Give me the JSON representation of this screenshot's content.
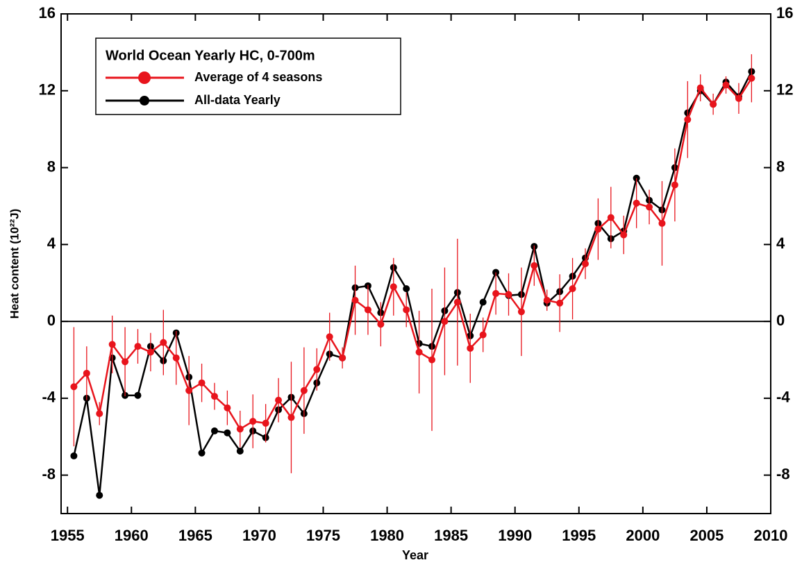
{
  "chart_data": {
    "type": "line",
    "title": "World Ocean Yearly  HC, 0-700m",
    "x_label": "Year",
    "y_label": "Heat content (10²²J)",
    "x": [
      1955.5,
      1956.5,
      1957.5,
      1958.5,
      1959.5,
      1960.5,
      1961.5,
      1962.5,
      1963.5,
      1964.5,
      1965.5,
      1966.5,
      1967.5,
      1968.5,
      1969.5,
      1970.5,
      1971.5,
      1972.5,
      1973.5,
      1974.5,
      1975.5,
      1976.5,
      1977.5,
      1978.5,
      1979.5,
      1980.5,
      1981.5,
      1982.5,
      1983.5,
      1984.5,
      1985.5,
      1986.5,
      1987.5,
      1988.5,
      1989.5,
      1990.5,
      1991.5,
      1992.5,
      1993.5,
      1994.5,
      1995.5,
      1996.5,
      1997.5,
      1998.5,
      1999.5,
      2000.5,
      2001.5,
      2002.5,
      2003.5,
      2004.5,
      2005.5,
      2006.5,
      2007.5,
      2008.5
    ],
    "series": [
      {
        "name": "Average of 4 seasons",
        "color": "#e8141c",
        "values": [
          -3.4,
          -2.7,
          -4.8,
          -1.2,
          -2.1,
          -1.3,
          -1.6,
          -1.1,
          -1.9,
          -3.6,
          -3.2,
          -3.9,
          -4.5,
          -5.6,
          -5.2,
          -5.3,
          -4.1,
          -5.0,
          -3.6,
          -2.5,
          -0.8,
          -1.9,
          1.1,
          0.6,
          -0.15,
          1.8,
          0.6,
          -1.6,
          -2.0,
          0.0,
          1.0,
          -1.4,
          -0.7,
          1.45,
          1.4,
          0.5,
          2.9,
          1.1,
          0.95,
          1.7,
          3.0,
          4.8,
          5.4,
          4.5,
          6.15,
          5.95,
          5.1,
          7.1,
          10.5,
          12.15,
          11.3,
          12.3,
          11.6,
          12.65
        ],
        "errors": [
          3.1,
          1.4,
          0.6,
          1.5,
          1.8,
          0.9,
          1.0,
          1.7,
          1.4,
          1.8,
          1.0,
          0.7,
          0.9,
          0.95,
          1.4,
          1.0,
          1.15,
          2.9,
          2.25,
          1.1,
          1.25,
          0.55,
          1.8,
          1.3,
          1.15,
          1.5,
          0.9,
          2.15,
          3.7,
          2.8,
          3.3,
          1.8,
          0.9,
          1.1,
          1.1,
          2.3,
          1.05,
          0.55,
          1.5,
          1.6,
          0.8,
          1.6,
          1.6,
          1.0,
          1.3,
          0.9,
          2.2,
          1.9,
          2.0,
          0.7,
          0.55,
          0.45,
          0.8,
          1.25
        ]
      },
      {
        "name": "All-data Yearly",
        "color": "#000000",
        "values": [
          -7.0,
          -4.0,
          -9.05,
          -1.9,
          -3.85,
          -3.85,
          -1.3,
          -2.05,
          -0.6,
          -2.9,
          -6.85,
          -5.7,
          -5.8,
          -6.75,
          -5.7,
          -6.05,
          -4.6,
          -3.95,
          -4.8,
          -3.2,
          -1.7,
          -1.9,
          1.75,
          1.85,
          0.45,
          2.8,
          1.7,
          -1.15,
          -1.3,
          0.55,
          1.5,
          -0.75,
          1.0,
          2.55,
          1.35,
          1.4,
          3.9,
          0.95,
          1.55,
          2.35,
          3.3,
          5.1,
          4.3,
          4.7,
          7.45,
          6.3,
          5.8,
          8.0,
          10.85,
          12.0,
          11.3,
          12.45,
          11.7,
          13.0
        ]
      }
    ],
    "xlim": [
      1954.5,
      2010
    ],
    "xticks": [
      1955,
      1960,
      1965,
      1970,
      1975,
      1980,
      1985,
      1990,
      1995,
      2000,
      2005,
      2010
    ],
    "ylim": [
      -10,
      16
    ],
    "yticks": [
      -8,
      -4,
      0,
      4,
      8,
      12,
      16
    ],
    "zero_line": true,
    "grid": false
  }
}
